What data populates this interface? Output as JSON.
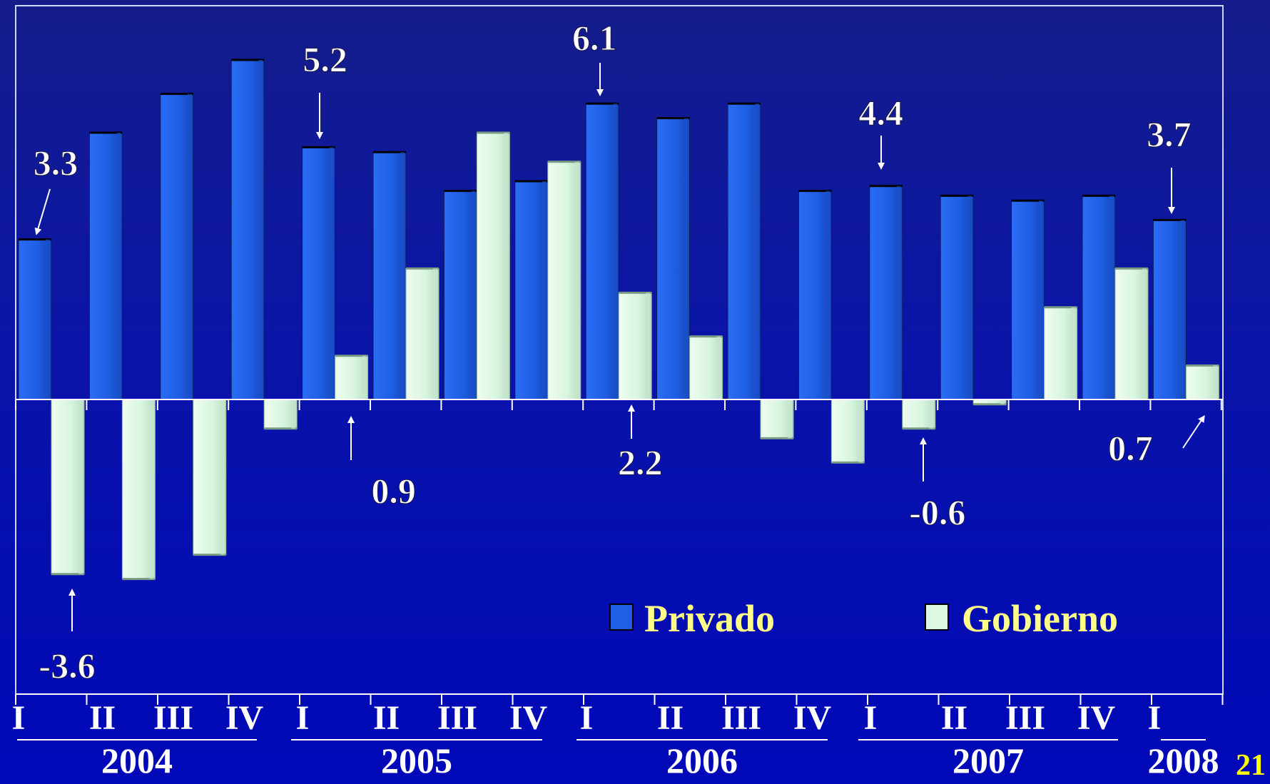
{
  "page_number": "21",
  "colors": {
    "privado": "#1f5fe6",
    "gobierno": "#dcf7e2",
    "background": "#0a14a8",
    "legend_text": "#ffff88",
    "label_text": "#ffffff",
    "page_number": "#ffff00"
  },
  "chart_data": {
    "type": "bar",
    "title": "",
    "xlabel": "",
    "ylabel": "",
    "ylim": [
      -4.7,
      7.4
    ],
    "grid": false,
    "legend_position": "bottom-right",
    "categories": [
      "I 2004",
      "II 2004",
      "III 2004",
      "IV 2004",
      "I 2005",
      "II 2005",
      "III 2005",
      "IV 2005",
      "I 2006",
      "II 2006",
      "III 2006",
      "IV 2006",
      "I 2007",
      "II 2007",
      "III 2007",
      "IV 2007",
      "I 2008"
    ],
    "quarter_labels": [
      "I",
      "II",
      "III",
      "IV",
      "I",
      "II",
      "III",
      "IV",
      "I",
      "II",
      "III",
      "IV",
      "I",
      "II",
      "III",
      "IV",
      "I"
    ],
    "year_labels": [
      "2004",
      "2005",
      "2006",
      "2007",
      "2008"
    ],
    "series": [
      {
        "name": "Privado",
        "values": [
          3.3,
          5.5,
          6.3,
          7.0,
          5.2,
          5.1,
          4.3,
          4.5,
          6.1,
          5.8,
          6.1,
          4.3,
          4.4,
          4.2,
          4.1,
          4.2,
          3.7
        ]
      },
      {
        "name": "Gobierno",
        "values": [
          -3.6,
          -3.7,
          -3.2,
          -0.6,
          0.9,
          2.7,
          5.5,
          4.9,
          2.2,
          1.3,
          -0.8,
          -1.3,
          -0.6,
          -0.1,
          1.9,
          2.7,
          0.7
        ]
      }
    ],
    "annotations": [
      {
        "text": "3.3",
        "series": "Privado",
        "index": 0
      },
      {
        "text": "5.2",
        "series": "Privado",
        "index": 4
      },
      {
        "text": "6.1",
        "series": "Privado",
        "index": 8
      },
      {
        "text": "4.4",
        "series": "Privado",
        "index": 12
      },
      {
        "text": "3.7",
        "series": "Privado",
        "index": 16
      },
      {
        "text": "-3.6",
        "series": "Gobierno",
        "index": 0
      },
      {
        "text": "0.9",
        "series": "Gobierno",
        "index": 4
      },
      {
        "text": "2.2",
        "series": "Gobierno",
        "index": 8
      },
      {
        "text": "-0.6",
        "series": "Gobierno",
        "index": 12
      },
      {
        "text": "0.7",
        "series": "Gobierno",
        "index": 16
      }
    ]
  }
}
